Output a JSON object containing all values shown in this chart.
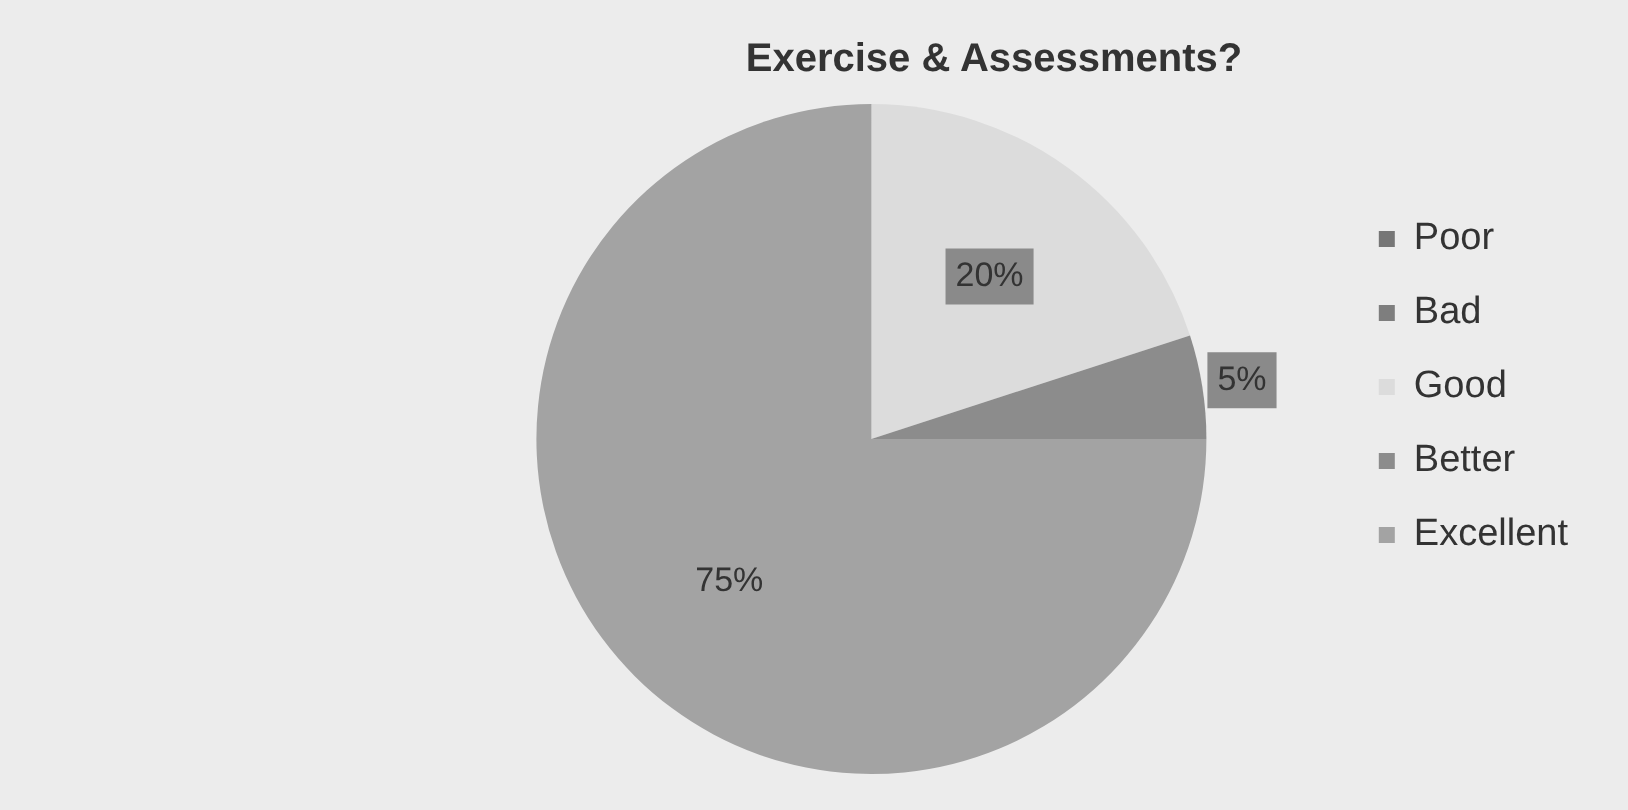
{
  "chart_data": {
    "type": "pie",
    "title": "Exercise & Assessments?",
    "categories": [
      "Poor",
      "Bad",
      "Good",
      "Better",
      "Excellent"
    ],
    "values": [
      0,
      0,
      20,
      5,
      75
    ],
    "value_labels": [
      null,
      null,
      "20%",
      "5%",
      "75%"
    ],
    "colors": [
      "#767676",
      "#7e7e7e",
      "#dcdcdc",
      "#8c8c8c",
      "#a3a3a3"
    ],
    "legend": "right"
  }
}
